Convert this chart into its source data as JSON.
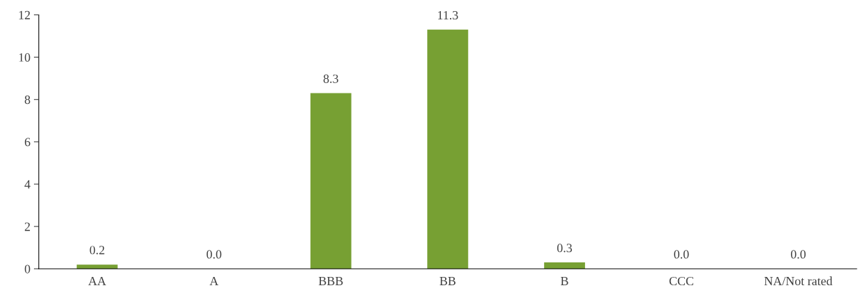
{
  "chart_data": {
    "type": "bar",
    "categories": [
      "AA",
      "A",
      "BBB",
      "BB",
      "B",
      "CCC",
      "NA/Not rated"
    ],
    "values": [
      0.2,
      0.0,
      8.3,
      11.3,
      0.3,
      0.0,
      0.0
    ],
    "color": "#77a033",
    "ylim": [
      0,
      12
    ],
    "yticks": [
      0,
      2,
      4,
      6,
      8,
      10,
      12
    ],
    "value_labels": [
      "0.2",
      "0.0",
      "8.3",
      "11.3",
      "0.3",
      "0.0",
      "0.0"
    ],
    "grid": false,
    "legend": false
  }
}
